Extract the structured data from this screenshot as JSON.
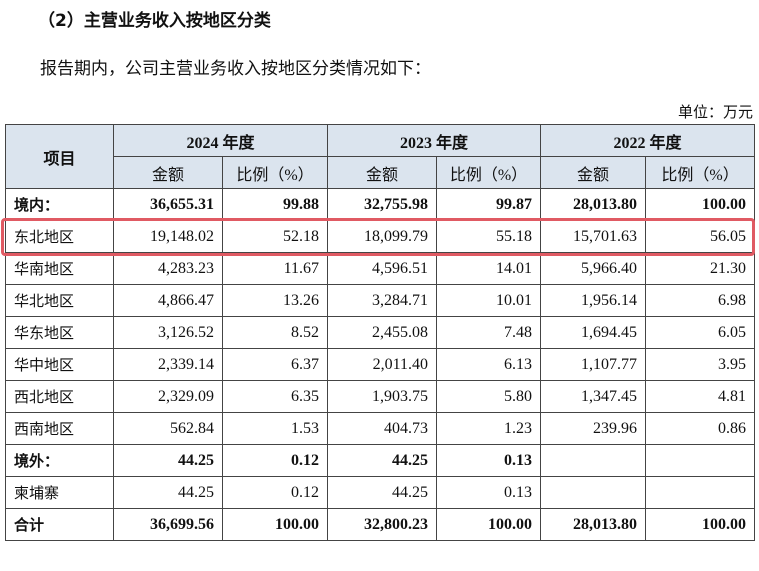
{
  "heading": "（2）主营业务收入按地区分类",
  "intro": "报告期内，公司主营业务收入按地区分类情况如下：",
  "unit": "单位：万元",
  "table": {
    "header": {
      "item": "项目",
      "years": [
        "2024 年度",
        "2023 年度",
        "2022 年度"
      ],
      "subheaders": [
        "金额",
        "比例（%）",
        "金额",
        "比例（%）",
        "金额",
        "比例（%）"
      ]
    },
    "rows": [
      [
        "境内：",
        "36,655.31",
        "99.88",
        "32,755.98",
        "99.87",
        "28,013.80",
        "100.00"
      ],
      [
        "东北地区",
        "19,148.02",
        "52.18",
        "18,099.79",
        "55.18",
        "15,701.63",
        "56.05"
      ],
      [
        "华南地区",
        "4,283.23",
        "11.67",
        "4,596.51",
        "14.01",
        "5,966.40",
        "21.30"
      ],
      [
        "华北地区",
        "4,866.47",
        "13.26",
        "3,284.71",
        "10.01",
        "1,956.14",
        "6.98"
      ],
      [
        "华东地区",
        "3,126.52",
        "8.52",
        "2,455.08",
        "7.48",
        "1,694.45",
        "6.05"
      ],
      [
        "华中地区",
        "2,339.14",
        "6.37",
        "2,011.40",
        "6.13",
        "1,107.77",
        "3.95"
      ],
      [
        "西北地区",
        "2,329.09",
        "6.35",
        "1,903.75",
        "5.80",
        "1,347.45",
        "4.81"
      ],
      [
        "西南地区",
        "562.84",
        "1.53",
        "404.73",
        "1.23",
        "239.96",
        "0.86"
      ],
      [
        "境外：",
        "44.25",
        "0.12",
        "44.25",
        "0.13",
        null,
        null
      ],
      [
        "柬埔寨",
        "44.25",
        "0.12",
        "44.25",
        "0.13",
        null,
        null
      ],
      [
        "合计",
        "36,699.56",
        "100.00",
        "32,800.23",
        "100.00",
        "28,013.80",
        "100.00"
      ]
    ],
    "bold_rows": [
      0,
      8,
      10
    ],
    "highlight_row": 1
  }
}
